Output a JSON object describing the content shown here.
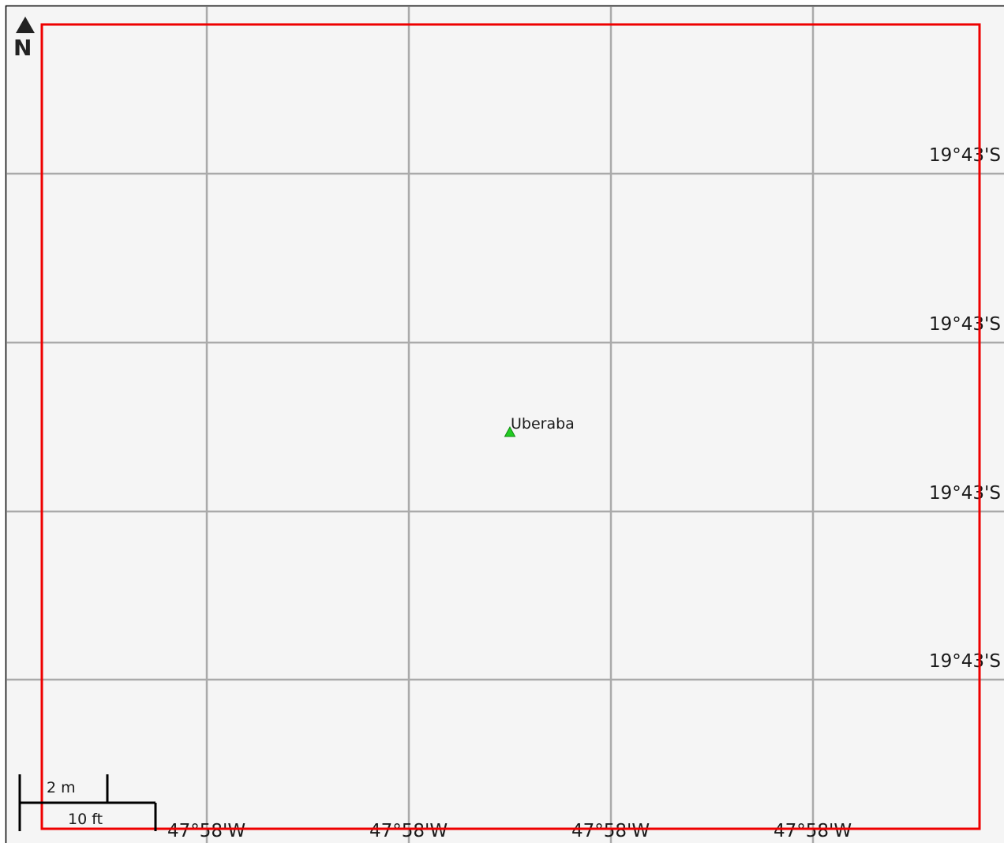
{
  "map": {
    "background_color": "#f5f5f5",
    "grid_color": "#aaaaaa",
    "extent_color": "#ee0000",
    "north_arrow": {
      "icon": "north-arrow-icon",
      "letter": "N"
    },
    "lat_labels": [
      "19°43'S",
      "19°43'S",
      "19°43'S",
      "19°43'S"
    ],
    "lon_labels": [
      "47°58'W",
      "47°58'W",
      "47°58'W",
      "47°58'W"
    ],
    "place": {
      "name": "Uberaba",
      "marker_icon": "green-triangle-marker-icon",
      "marker_color": "#22cc22"
    },
    "scale_bar": {
      "metric_label": "2 m",
      "imperial_label": "10 ft"
    }
  }
}
